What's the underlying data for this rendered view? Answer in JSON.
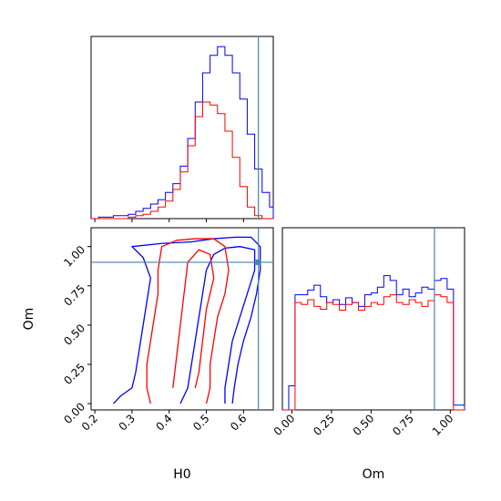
{
  "chart_data": {
    "type": "corner",
    "parameters": [
      "H0",
      "Om"
    ],
    "truths": {
      "H0": 0.64,
      "Om": 0.9
    },
    "colors": {
      "series_a": "#0000ff",
      "series_b": "#ff0000",
      "truth": "#4682b4"
    },
    "axes": {
      "H0": {
        "xlabel": "H0",
        "xlim": [
          0.19,
          0.68
        ],
        "ticks": [
          0.2,
          0.3,
          0.4,
          0.5,
          0.6
        ],
        "tick_labels": [
          "0.2",
          "0.3",
          "0.4",
          "0.5",
          "0.6"
        ]
      },
      "Om": {
        "xlabel": "Om",
        "ylabel": "Om",
        "xlim": [
          -0.06,
          1.09
        ],
        "ticks": [
          0.0,
          0.25,
          0.5,
          0.75,
          1.0
        ],
        "tick_labels": [
          "0.00",
          "0.25",
          "0.50",
          "0.75",
          "1.00"
        ],
        "ylim": [
          -0.04,
          1.12
        ]
      }
    },
    "hist_H0": {
      "bin_edges": [
        0.19,
        0.21,
        0.23,
        0.25,
        0.27,
        0.29,
        0.31,
        0.33,
        0.35,
        0.37,
        0.39,
        0.41,
        0.43,
        0.45,
        0.47,
        0.49,
        0.51,
        0.53,
        0.55,
        0.57,
        0.59,
        0.61,
        0.63,
        0.65,
        0.67,
        0.68
      ],
      "series": [
        {
          "key": "series_a",
          "values": [
            0,
            1,
            1,
            2,
            2,
            3,
            5,
            7,
            10,
            13,
            18,
            24,
            36,
            55,
            80,
            100,
            112,
            118,
            112,
            100,
            82,
            58,
            34,
            18,
            8
          ]
        },
        {
          "key": "series_b",
          "values": [
            0,
            0,
            0,
            0,
            0,
            1,
            2,
            3,
            5,
            8,
            12,
            20,
            32,
            50,
            70,
            80,
            78,
            72,
            60,
            42,
            22,
            8,
            2,
            0,
            0
          ]
        }
      ],
      "ylim": [
        0,
        125
      ]
    },
    "hist_Om": {
      "bin_edges": [
        -0.06,
        -0.02,
        0.02,
        0.06,
        0.1,
        0.14,
        0.18,
        0.22,
        0.26,
        0.3,
        0.34,
        0.38,
        0.42,
        0.46,
        0.5,
        0.54,
        0.58,
        0.62,
        0.66,
        0.7,
        0.74,
        0.78,
        0.82,
        0.86,
        0.9,
        0.94,
        0.98,
        1.02,
        1.06,
        1.09
      ],
      "series": [
        {
          "key": "series_a",
          "values": [
            0,
            25,
            120,
            120,
            125,
            130,
            118,
            112,
            115,
            110,
            117,
            112,
            108,
            120,
            122,
            128,
            140,
            135,
            120,
            126,
            118,
            122,
            128,
            126,
            135,
            137,
            126,
            5,
            5
          ]
        },
        {
          "key": "series_b",
          "values": [
            0,
            0,
            112,
            110,
            115,
            108,
            105,
            112,
            110,
            104,
            110,
            112,
            104,
            108,
            112,
            110,
            118,
            120,
            112,
            110,
            115,
            112,
            108,
            114,
            120,
            118,
            112,
            0,
            0
          ]
        }
      ],
      "ylim": [
        0,
        190
      ]
    },
    "contours": {
      "series_a": [
        [
          [
            0.25,
            0.0
          ],
          [
            0.27,
            0.05
          ],
          [
            0.3,
            0.1
          ],
          [
            0.31,
            0.2
          ],
          [
            0.32,
            0.35
          ],
          [
            0.33,
            0.5
          ],
          [
            0.34,
            0.65
          ],
          [
            0.35,
            0.8
          ],
          [
            0.33,
            0.93
          ],
          [
            0.3,
            1.0
          ],
          [
            0.38,
            1.02
          ],
          [
            0.46,
            1.03
          ],
          [
            0.52,
            1.05
          ],
          [
            0.58,
            1.06
          ],
          [
            0.62,
            1.06
          ],
          [
            0.645,
            1.0
          ],
          [
            0.645,
            0.85
          ],
          [
            0.635,
            0.7
          ],
          [
            0.62,
            0.55
          ],
          [
            0.6,
            0.4
          ],
          [
            0.585,
            0.25
          ],
          [
            0.575,
            0.1
          ],
          [
            0.57,
            0.0
          ]
        ],
        [
          [
            0.43,
            0.0
          ],
          [
            0.45,
            0.1
          ],
          [
            0.46,
            0.25
          ],
          [
            0.47,
            0.4
          ],
          [
            0.48,
            0.55
          ],
          [
            0.49,
            0.7
          ],
          [
            0.5,
            0.85
          ],
          [
            0.52,
            0.95
          ],
          [
            0.55,
            0.99
          ],
          [
            0.59,
            1.0
          ],
          [
            0.63,
            0.98
          ],
          [
            0.63,
            0.85
          ],
          [
            0.61,
            0.7
          ],
          [
            0.59,
            0.55
          ],
          [
            0.57,
            0.4
          ],
          [
            0.56,
            0.25
          ],
          [
            0.55,
            0.1
          ],
          [
            0.55,
            0.0
          ]
        ]
      ],
      "series_b": [
        [
          [
            0.35,
            0.0
          ],
          [
            0.34,
            0.1
          ],
          [
            0.34,
            0.25
          ],
          [
            0.35,
            0.4
          ],
          [
            0.36,
            0.55
          ],
          [
            0.37,
            0.7
          ],
          [
            0.37,
            0.85
          ],
          [
            0.38,
            1.0
          ],
          [
            0.42,
            1.04
          ],
          [
            0.47,
            1.05
          ],
          [
            0.52,
            1.05
          ],
          [
            0.55,
            1.0
          ],
          [
            0.56,
            0.85
          ],
          [
            0.55,
            0.7
          ],
          [
            0.53,
            0.55
          ],
          [
            0.52,
            0.4
          ],
          [
            0.51,
            0.25
          ],
          [
            0.51,
            0.1
          ],
          [
            0.5,
            0.0
          ]
        ],
        [
          [
            0.41,
            0.1
          ],
          [
            0.42,
            0.3
          ],
          [
            0.43,
            0.5
          ],
          [
            0.44,
            0.7
          ],
          [
            0.45,
            0.9
          ],
          [
            0.48,
            0.98
          ],
          [
            0.51,
            0.95
          ],
          [
            0.52,
            0.8
          ],
          [
            0.5,
            0.6
          ],
          [
            0.49,
            0.4
          ],
          [
            0.48,
            0.2
          ],
          [
            0.47,
            0.1
          ]
        ]
      ]
    }
  }
}
